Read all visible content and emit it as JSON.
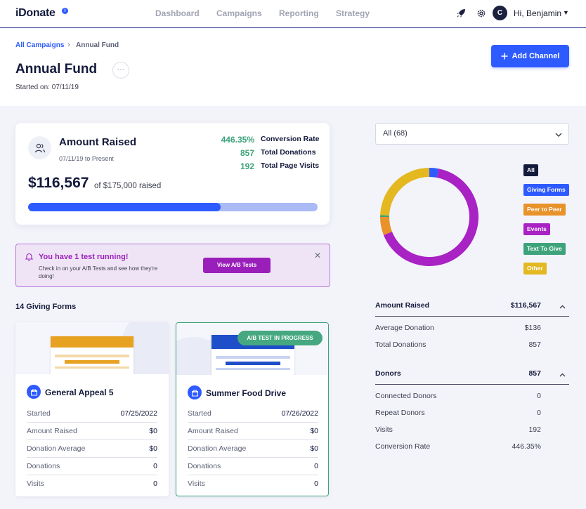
{
  "topbar": {
    "logo": "iDonate",
    "info_glyph": "i",
    "nav": [
      "Dashboard",
      "Campaigns",
      "Reporting",
      "Strategy"
    ],
    "avatar_initial": "C",
    "user_greeting": "Hi, Benjamin",
    "icons": [
      "rocket-icon",
      "gear-icon",
      "caret-down-icon"
    ]
  },
  "header": {
    "breadcrumb_parent": "All Campaigns",
    "breadcrumb_separator": "›",
    "breadcrumb_current": "Annual Fund",
    "title": "Annual Fund",
    "more_glyph": "···",
    "started": "Started on: 07/11/19",
    "add_channel_label": "Add Channel"
  },
  "amount_card": {
    "title": "Amount Raised",
    "range": "07/11/19 to Present",
    "amount": "$116,567",
    "goal_text": "of $175,000 raised",
    "progress_fraction": 0.666,
    "stats": [
      {
        "value": "446.35%",
        "label": "Conversion Rate"
      },
      {
        "value": "857",
        "label": "Total Donations"
      },
      {
        "value": "192",
        "label": "Total Page Visits"
      }
    ]
  },
  "banner": {
    "title": "You have 1 test running!",
    "text": "Check in on your A/B Tests and see how they're doing!",
    "button_label": "View A/B Tests",
    "close_glyph": "✕"
  },
  "forms": {
    "heading": "14 Giving Forms",
    "cards": [
      {
        "name": "General Appeal 5",
        "accent": "#e8a222",
        "badge": "",
        "rows": [
          {
            "k": "Started",
            "v": "07/25/2022"
          },
          {
            "k": "Amount Raised",
            "v": "$0"
          },
          {
            "k": "Donation Average",
            "v": "$0"
          },
          {
            "k": "Donations",
            "v": "0"
          },
          {
            "k": "Visits",
            "v": "0"
          }
        ]
      },
      {
        "name": "Summer Food Drive",
        "accent": "#1e4fc9",
        "badge": "A/B TEST IN PROGRESS",
        "rows": [
          {
            "k": "Started",
            "v": "07/26/2022"
          },
          {
            "k": "Amount Raised",
            "v": "$0"
          },
          {
            "k": "Donation Average",
            "v": "$0"
          },
          {
            "k": "Donations",
            "v": "0"
          },
          {
            "k": "Visits",
            "v": "0"
          }
        ]
      }
    ]
  },
  "filter": {
    "selected": "All (68)"
  },
  "legend": [
    {
      "label": "All",
      "bg": "#141a3c",
      "fg": "#ffffff"
    },
    {
      "label": "Giving Forms",
      "bg": "#2e5bff",
      "fg": "#ffffff"
    },
    {
      "label": "Peer to Peer",
      "bg": "#e8922a",
      "fg": "#ffffff"
    },
    {
      "label": "Events",
      "bg": "#a822c4",
      "fg": "#ffffff"
    },
    {
      "label": "Text To Give",
      "bg": "#3ea37a",
      "fg": "#ffffff"
    },
    {
      "label": "Other",
      "bg": "#e3b820",
      "fg": "#ffffff"
    }
  ],
  "chart_data": {
    "type": "pie",
    "categories": [
      "Giving Forms",
      "Events",
      "Peer to Peer",
      "Text To Give",
      "Other"
    ],
    "values": [
      3,
      66,
      6,
      0.6,
      24.4
    ],
    "colors": [
      "#2e5bff",
      "#a822c4",
      "#e8922a",
      "#3ea37a",
      "#e3b820"
    ]
  },
  "summary": {
    "amount_head": {
      "k": "Amount Raised",
      "v": "$116,567"
    },
    "amount_rows": [
      {
        "k": "Average Donation",
        "v": "$136"
      },
      {
        "k": "Total Donations",
        "v": "857"
      }
    ],
    "donors_head": {
      "k": "Donors",
      "v": "857"
    },
    "donor_rows": [
      {
        "k": "Connected Donors",
        "v": "0"
      },
      {
        "k": "Repeat Donors",
        "v": "0"
      },
      {
        "k": "Visits",
        "v": "192"
      },
      {
        "k": "Conversion Rate",
        "v": "446.35%"
      }
    ]
  }
}
